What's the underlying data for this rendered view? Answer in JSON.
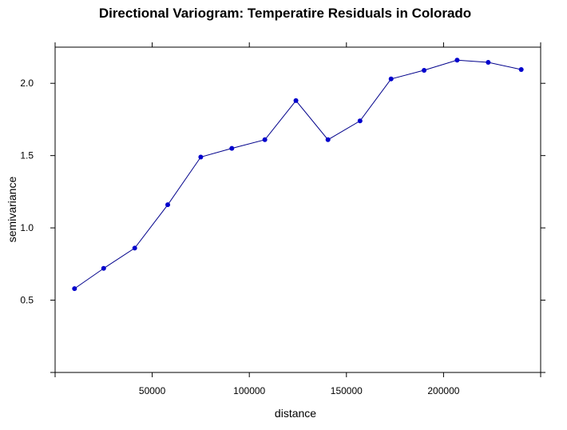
{
  "chart_data": {
    "type": "line",
    "title": "Directional Variogram:  Temperatire Residuals in Colorado",
    "xlabel": "distance",
    "ylabel": "semivariance",
    "xlim": [
      0,
      250000
    ],
    "ylim": [
      0,
      2.25
    ],
    "x_ticks": [
      50000,
      100000,
      150000,
      200000
    ],
    "x_tick_labels": [
      "50000",
      "100000",
      "150000",
      "200000"
    ],
    "y_ticks": [
      0.5,
      1.0,
      1.5,
      2.0
    ],
    "y_tick_labels": [
      "0.5",
      "1.0",
      "1.5",
      "2.0"
    ],
    "grid": false,
    "legend": "none",
    "series": [
      {
        "color": "#00008b",
        "marker_color": "#0000cd",
        "x": [
          10000,
          25000,
          41000,
          58000,
          75000,
          91000,
          108000,
          124000,
          140500,
          157000,
          173000,
          190000,
          207000,
          223000,
          240000
        ],
        "y": [
          0.58,
          0.72,
          0.86,
          1.16,
          1.49,
          1.55,
          1.61,
          1.88,
          1.61,
          1.74,
          2.03,
          2.09,
          2.16,
          2.145,
          2.095
        ]
      }
    ]
  }
}
